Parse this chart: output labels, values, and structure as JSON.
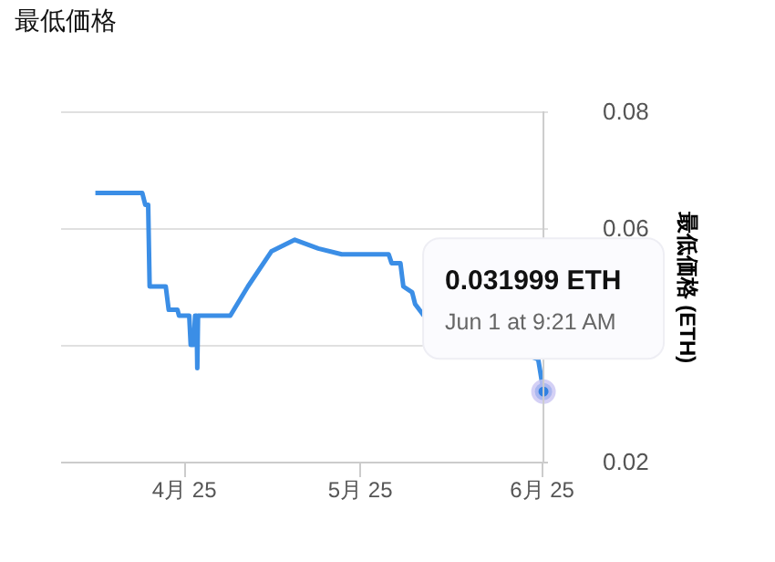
{
  "chart_data": {
    "type": "line",
    "title": "最低価格",
    "ylabel": "最低価格 (ETH)",
    "xlim": [
      "2025-03-11",
      "2025-06-02"
    ],
    "xticks": [
      {
        "value": "2025-04-01",
        "label": "4月 25"
      },
      {
        "value": "2025-05-01",
        "label": "5月 25"
      },
      {
        "value": "2025-06-01",
        "label": "6月 25"
      }
    ],
    "ylim": [
      0.02,
      0.08
    ],
    "yticks": [
      0.02,
      {
        "value": 0.04,
        "label": null
      },
      0.06,
      0.08
    ],
    "grid": "y",
    "line_style": "solid",
    "series": [
      {
        "color": "#3b8ee6",
        "x": [
          "2025-03-17",
          "2025-03-25",
          "2025-03-25T12:00",
          "2025-03-26",
          "2025-03-26T06:00",
          "2025-03-29",
          "2025-03-29T12:00",
          "2025-03-31",
          "2025-03-31T06:00",
          "2025-04-02",
          "2025-04-02T06:00",
          "2025-04-02T18:00",
          "2025-04-03",
          "2025-04-03T06:00",
          "2025-04-03T09:00",
          "2025-04-03T12:00",
          "2025-04-09",
          "2025-04-12",
          "2025-04-16",
          "2025-04-20",
          "2025-04-24",
          "2025-04-28",
          "2025-05-06",
          "2025-05-06T12:00",
          "2025-05-08",
          "2025-05-08T12:00",
          "2025-05-10",
          "2025-05-10T12:00",
          "2025-05-12",
          "2025-05-31T12:00",
          "2025-06-01T09:21"
        ],
        "values": [
          0.066,
          0.066,
          0.064,
          0.064,
          0.05,
          0.05,
          0.046,
          0.046,
          0.045,
          0.045,
          0.04,
          0.04,
          0.045,
          0.045,
          0.036,
          0.045,
          0.045,
          0.05,
          0.056,
          0.058,
          0.0565,
          0.0555,
          0.0555,
          0.054,
          0.054,
          0.05,
          0.049,
          0.047,
          0.045,
          0.0375,
          0.032
        ]
      },
      {
        "type": "scatter",
        "color": "#2f80e0",
        "x": [
          "2025-06-01T09:21"
        ],
        "values": [
          0.032
        ]
      }
    ],
    "annotations": [
      "0.031999 ETH",
      "Jun 1 at 9:21 AM"
    ]
  }
}
